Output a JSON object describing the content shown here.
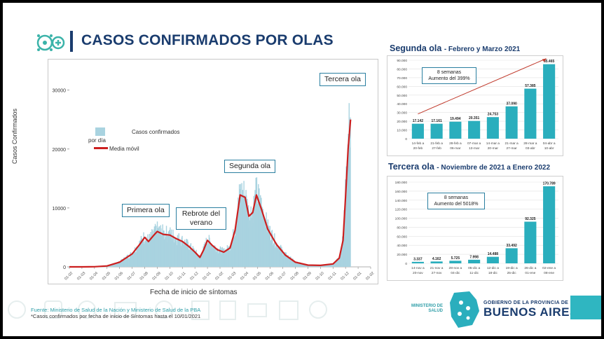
{
  "title": "CASOS CONFIRMADOS POR OLAS",
  "footer": {
    "source": "Fuente: Ministerio de Salud de la Nación y Ministerio de Salud de la PBA",
    "note": "*Casos confirmados por fecha de inicio de Síntomas hasta el 10/01/2021"
  },
  "logo": {
    "ministerio_line1": "MINISTERIO DE",
    "ministerio_line2": "SALUD",
    "gov_line1": "GOBIERNO DE LA PROVINCIA DE",
    "gov_line2": "BUENOS AIRES"
  },
  "colors": {
    "bar": "#a9d3e0",
    "line": "#cc1f1f",
    "title": "#1a3c6e",
    "side_bar": "#2aaebd"
  },
  "chart_data": [
    {
      "type": "bar+line",
      "ylabel": "Casos Confirmados",
      "xlabel": "Fecha de inicio de síntomas",
      "ylim": [
        0,
        34000
      ],
      "yticks": [
        0,
        10000,
        20000,
        30000
      ],
      "xticks": [
        "01-02",
        "01-03",
        "01-04",
        "01-05",
        "01-06",
        "01-07",
        "01-08",
        "01-09",
        "01-10",
        "01-11",
        "01-12",
        "01-01",
        "01-02",
        "01-03",
        "01-04",
        "01-05",
        "01-06",
        "01-07",
        "01-08",
        "01-09",
        "01-10",
        "01-11",
        "01-12",
        "01-01",
        "01-02"
      ],
      "legend": {
        "bar_label": "por día",
        "title": "Casos confirmados",
        "line_label": "Media móvil",
        "placement": "upper-left"
      },
      "moving_average": [
        [
          0,
          0
        ],
        [
          1,
          0
        ],
        [
          2,
          20
        ],
        [
          3,
          150
        ],
        [
          4,
          800
        ],
        [
          5,
          2200
        ],
        [
          5.6,
          3800
        ],
        [
          6,
          5000
        ],
        [
          6.3,
          4300
        ],
        [
          6.7,
          5300
        ],
        [
          7,
          6000
        ],
        [
          7.5,
          5500
        ],
        [
          8,
          5400
        ],
        [
          8.5,
          4800
        ],
        [
          9,
          4300
        ],
        [
          9.5,
          3500
        ],
        [
          10,
          2500
        ],
        [
          10.4,
          1600
        ],
        [
          10.7,
          2900
        ],
        [
          11,
          4500
        ],
        [
          11.4,
          3600
        ],
        [
          11.8,
          2900
        ],
        [
          12.3,
          2500
        ],
        [
          12.8,
          3200
        ],
        [
          13.2,
          6200
        ],
        [
          13.6,
          12200
        ],
        [
          14,
          11800
        ],
        [
          14.3,
          8600
        ],
        [
          14.6,
          9200
        ],
        [
          14.9,
          12200
        ],
        [
          15.3,
          9800
        ],
        [
          15.8,
          6400
        ],
        [
          16.5,
          3800
        ],
        [
          17.2,
          2000
        ],
        [
          18,
          800
        ],
        [
          19,
          300
        ],
        [
          20,
          250
        ],
        [
          21,
          500
        ],
        [
          21.5,
          1500
        ],
        [
          21.8,
          4500
        ],
        [
          22,
          12000
        ],
        [
          22.2,
          20000
        ],
        [
          22.4,
          25000
        ]
      ],
      "annotations": [
        {
          "label": "Primera ola"
        },
        {
          "label": "Rebrote del verano"
        },
        {
          "label": "Segunda ola"
        },
        {
          "label": "Tercera ola"
        }
      ]
    },
    {
      "type": "bar",
      "title": "Segunda ola",
      "subtitle": "- Febrero y Marzo 2021",
      "ylim": [
        0,
        90000
      ],
      "yticks": [
        "0",
        "10.000",
        "20.000",
        "30.000",
        "40.000",
        "50.000",
        "60.000",
        "70.000",
        "80.000",
        "90.000"
      ],
      "categories": [
        [
          "14-feb a",
          "20-feb"
        ],
        [
          "21-feb a",
          "27-feb"
        ],
        [
          "28-feb a",
          "06-mar"
        ],
        [
          "07-mar a",
          "13-mar"
        ],
        [
          "14-mar a",
          "20-mar"
        ],
        [
          "21-mar a",
          "27-mar"
        ],
        [
          "28-mar a",
          "03-abr"
        ],
        [
          "04-abr a",
          "10-abr"
        ]
      ],
      "values": [
        17142,
        17161,
        19494,
        20351,
        24753,
        37090,
        57385,
        85465
      ],
      "value_labels": [
        "17.142",
        "17.161",
        "19.494",
        "20.351",
        "24.753",
        "37.090",
        "57.385",
        "85.465"
      ],
      "annotation": [
        "8 semanas",
        "Aumento del 399%"
      ]
    },
    {
      "type": "bar",
      "title": "Tercera ola",
      "subtitle": "- Noviembre de 2021 a Enero 2022",
      "ylim": [
        0,
        180000
      ],
      "yticks": [
        "0",
        "20.000",
        "40.000",
        "60.000",
        "80.000",
        "100.000",
        "120.000",
        "140.000",
        "160.000",
        "180.000"
      ],
      "categories": [
        [
          "14-nov a",
          "20-nov"
        ],
        [
          "21-nov a",
          "27-nov"
        ],
        [
          "28-nov a",
          "04-dic"
        ],
        [
          "05-dic a",
          "11-dic"
        ],
        [
          "12-dic a",
          "18-dic"
        ],
        [
          "19-dic a",
          "25-dic"
        ],
        [
          "26-dic a",
          "01-ene"
        ],
        [
          "02-ene a",
          "08-ene"
        ]
      ],
      "values": [
        3337,
        4162,
        5725,
        7998,
        14488,
        33492,
        92325,
        170789
      ],
      "value_labels": [
        "3.337",
        "4.162",
        "5.725",
        "7.998",
        "14.488",
        "33.492",
        "92.325",
        "170.789"
      ],
      "annotation": [
        "8 semanas",
        "Aumento del 5018%"
      ]
    }
  ]
}
